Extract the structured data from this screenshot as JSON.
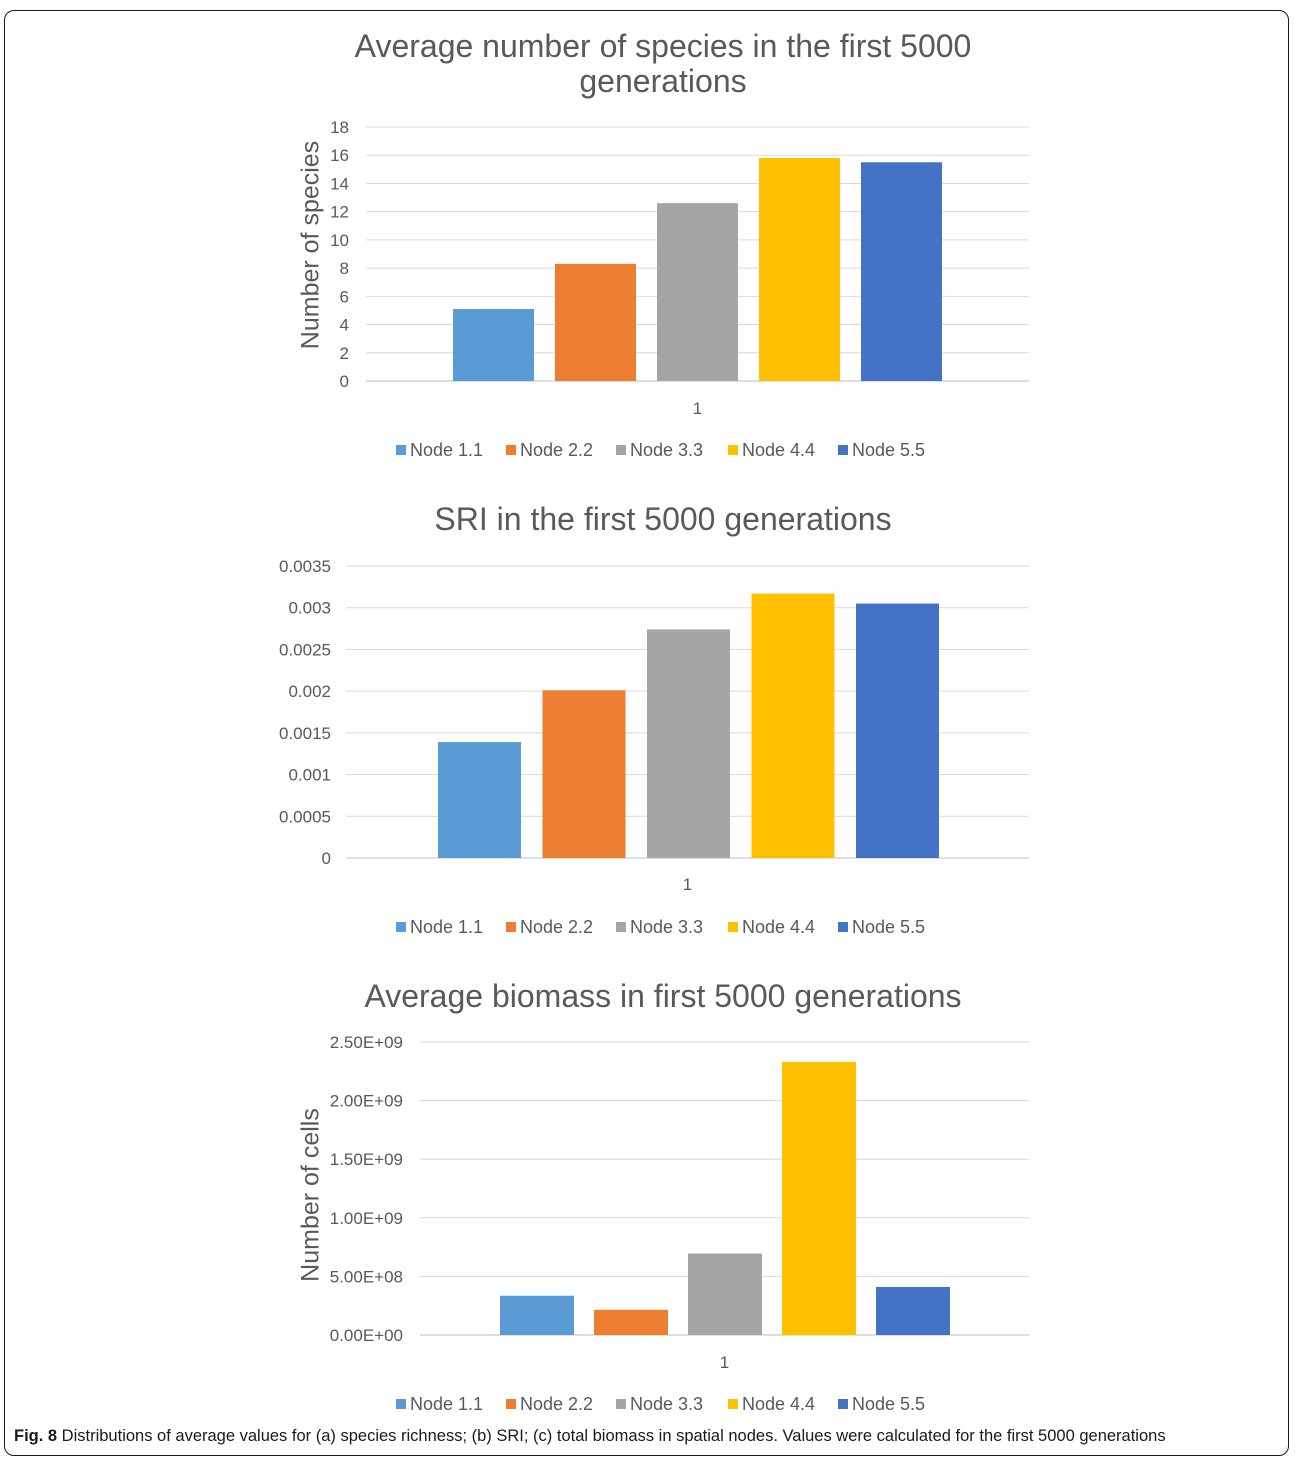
{
  "chart_data": [
    {
      "type": "bar",
      "title_lines": [
        "Average number of species in the first 5000",
        "generations"
      ],
      "ylabel": "Number of species",
      "xlabel": "",
      "categories": [
        "1"
      ],
      "ylim": [
        0,
        18
      ],
      "yticks": [
        "0",
        "2",
        "4",
        "6",
        "8",
        "10",
        "12",
        "14",
        "16",
        "18"
      ],
      "grid": true,
      "legend_position": "bottom",
      "series": [
        {
          "name": "Node 1.1",
          "values": [
            5.1
          ],
          "color": "#5B9BD5"
        },
        {
          "name": "Node 2.2",
          "values": [
            8.3
          ],
          "color": "#ED7D31"
        },
        {
          "name": "Node 3.3",
          "values": [
            12.6
          ],
          "color": "#A5A5A5"
        },
        {
          "name": "Node 4.4",
          "values": [
            15.8
          ],
          "color": "#FFC000"
        },
        {
          "name": "Node 5.5",
          "values": [
            15.5
          ],
          "color": "#4472C4"
        }
      ]
    },
    {
      "type": "bar",
      "title_lines": [
        "SRI in the first 5000 generations"
      ],
      "ylabel": "",
      "xlabel": "",
      "categories": [
        "1"
      ],
      "ylim": [
        0,
        0.0035
      ],
      "yticks": [
        "0",
        "0.0005",
        "0.001",
        "0.0015",
        "0.002",
        "0.0025",
        "0.003",
        "0.0035"
      ],
      "grid": true,
      "legend_position": "bottom",
      "series": [
        {
          "name": "Node 1.1",
          "values": [
            0.00139
          ],
          "color": "#5B9BD5"
        },
        {
          "name": "Node 2.2",
          "values": [
            0.00201
          ],
          "color": "#ED7D31"
        },
        {
          "name": "Node 3.3",
          "values": [
            0.00274
          ],
          "color": "#A5A5A5"
        },
        {
          "name": "Node 4.4",
          "values": [
            0.00317
          ],
          "color": "#FFC000"
        },
        {
          "name": "Node 5.5",
          "values": [
            0.00305
          ],
          "color": "#4472C4"
        }
      ]
    },
    {
      "type": "bar",
      "title_lines": [
        "Average biomass in first 5000 generations"
      ],
      "ylabel": "Number of cells",
      "xlabel": "",
      "categories": [
        "1"
      ],
      "ylim": [
        0,
        2500000000
      ],
      "yticks": [
        "0.00E+00",
        "5.00E+08",
        "1.00E+09",
        "1.50E+09",
        "2.00E+09",
        "2.50E+09"
      ],
      "grid": true,
      "legend_position": "bottom",
      "series": [
        {
          "name": "Node 1.1",
          "values": [
            335000000
          ],
          "color": "#5B9BD5"
        },
        {
          "name": "Node 2.2",
          "values": [
            215000000
          ],
          "color": "#ED7D31"
        },
        {
          "name": "Node 3.3",
          "values": [
            695000000
          ],
          "color": "#A5A5A5"
        },
        {
          "name": "Node 4.4",
          "values": [
            2330000000
          ],
          "color": "#FFC000"
        },
        {
          "name": "Node 5.5",
          "values": [
            410000000
          ],
          "color": "#4472C4"
        }
      ]
    }
  ],
  "caption": {
    "label": "Fig. 8",
    "text": " Distributions of average values for (a) species richness; (b) SRI; (c) total biomass in spatial nodes. Values were calculated for the first 5000 generations"
  }
}
